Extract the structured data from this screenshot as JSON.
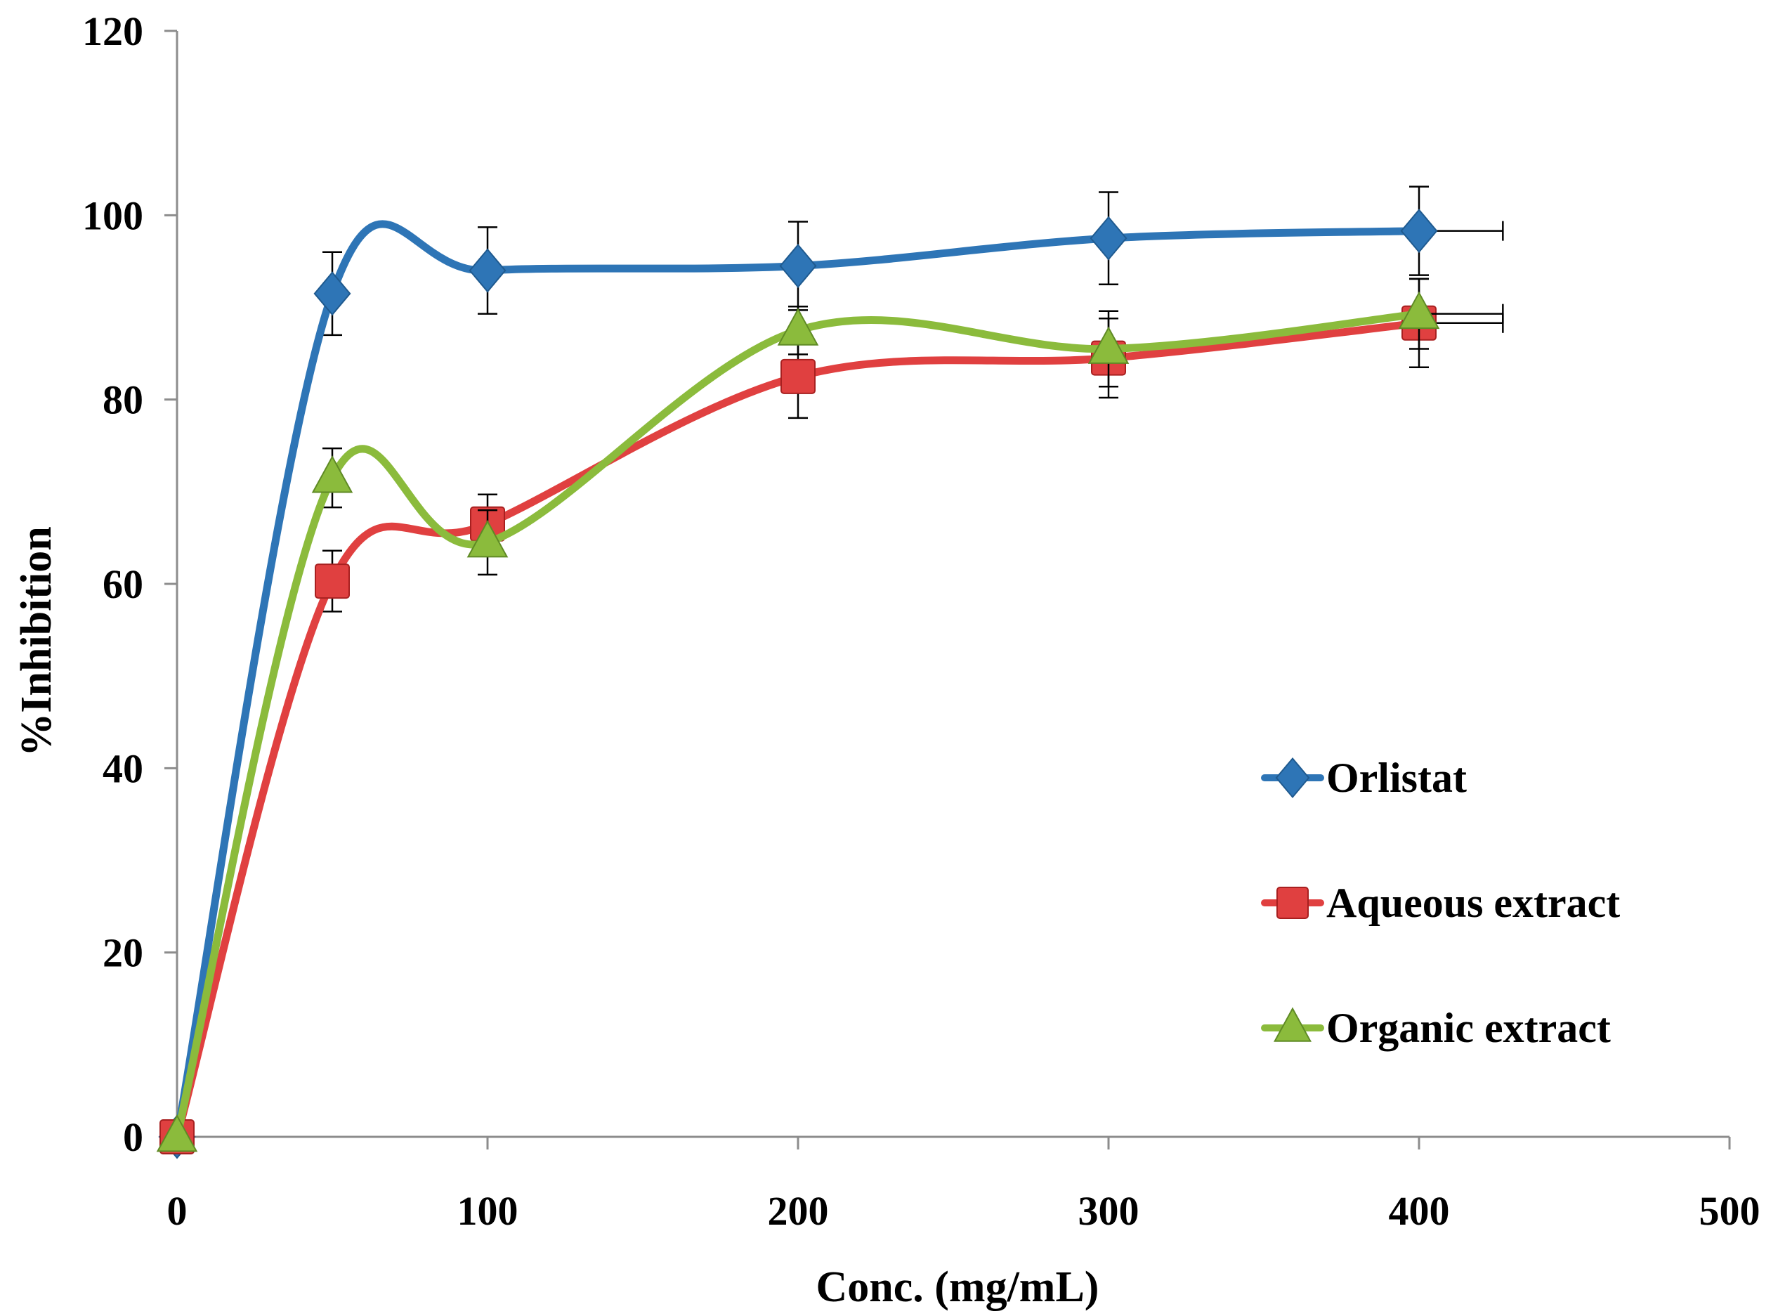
{
  "chart_data": {
    "type": "line",
    "title": "",
    "xlabel": "Conc. (mg/mL)",
    "ylabel": "%Inhibition",
    "xlim": [
      0,
      500
    ],
    "ylim": [
      0,
      120
    ],
    "xticks": [
      0,
      100,
      200,
      300,
      400,
      500
    ],
    "yticks": [
      0,
      20,
      40,
      60,
      80,
      100,
      120
    ],
    "grid": false,
    "legend_position": "right",
    "x": [
      0,
      50,
      100,
      200,
      300,
      400
    ],
    "series": [
      {
        "name": "Orlistat",
        "color": "#2e75b6",
        "marker": "diamond",
        "values": [
          0,
          91.5,
          94,
          94.5,
          97.5,
          98.3
        ],
        "errors": [
          0,
          4.5,
          4.7,
          4.8,
          5,
          4.8
        ]
      },
      {
        "name": "Aqueous extract",
        "color": "#e04040",
        "marker": "square",
        "values": [
          0,
          60.3,
          66.5,
          82.5,
          84.5,
          88.3
        ],
        "errors": [
          0,
          3.3,
          3.2,
          4.5,
          4.3,
          4.8
        ]
      },
      {
        "name": "Organic extract",
        "color": "#8bbb3c",
        "marker": "triangle",
        "values": [
          0,
          71.5,
          64.5,
          87.5,
          85.5,
          89.3
        ],
        "errors": [
          0,
          3.2,
          3.5,
          2.6,
          4.1,
          3.8
        ]
      }
    ]
  }
}
